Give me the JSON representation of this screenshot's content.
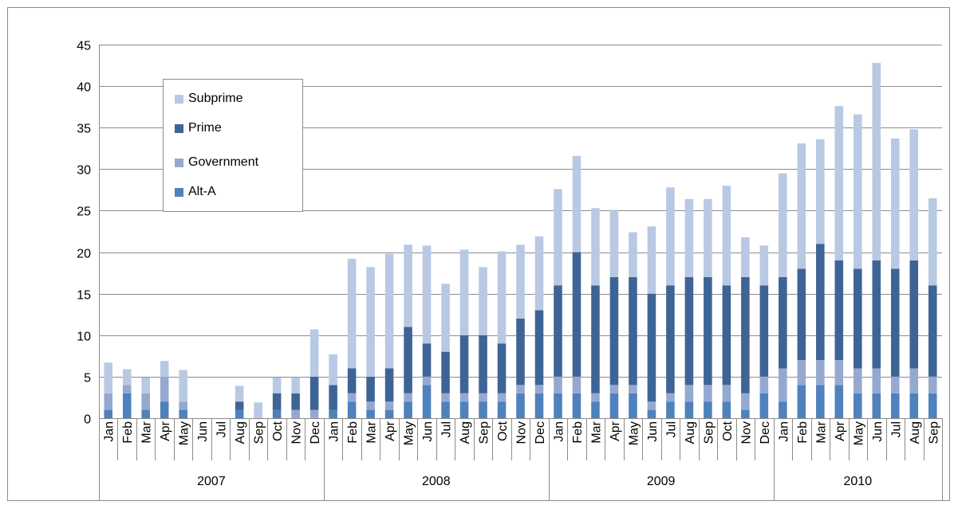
{
  "chart_data": {
    "type": "bar",
    "stacked": true,
    "title": "",
    "xlabel": "",
    "ylabel": "",
    "ylim": [
      0,
      45
    ],
    "yticks": [
      0,
      5,
      10,
      15,
      20,
      25,
      30,
      35,
      40,
      45
    ],
    "grid": true,
    "legend_position": "upper-left",
    "categories": [
      "Jan",
      "Feb",
      "Mar",
      "Apr",
      "May",
      "Jun",
      "Jul",
      "Aug",
      "Sep",
      "Oct",
      "Nov",
      "Dec",
      "Jan",
      "Feb",
      "Mar",
      "Apr",
      "May",
      "Jun",
      "Jul",
      "Aug",
      "Sep",
      "Oct",
      "Nov",
      "Dec",
      "Jan",
      "Feb",
      "Mar",
      "Apr",
      "May",
      "Jun",
      "Jul",
      "Aug",
      "Sep",
      "Oct",
      "Nov",
      "Dec",
      "Jan",
      "Feb",
      "Mar",
      "Apr",
      "May",
      "Jun",
      "Jul",
      "Aug",
      "Sep"
    ],
    "years": [
      {
        "label": "2007",
        "months": 12
      },
      {
        "label": "2008",
        "months": 12
      },
      {
        "label": "2009",
        "months": 12
      },
      {
        "label": "2010",
        "months": 9
      }
    ],
    "series": [
      {
        "name": "Alt-A",
        "color": "#4f81bd",
        "values": [
          1,
          3,
          1,
          2,
          1,
          0,
          0,
          1,
          0,
          1,
          0,
          0,
          1,
          2,
          1,
          1,
          2,
          4,
          2,
          2,
          2,
          2,
          3,
          3,
          3,
          3,
          2,
          3,
          3,
          1,
          2,
          2,
          2,
          2,
          1,
          3,
          2,
          4,
          4,
          4,
          3,
          3,
          3,
          3,
          3
        ]
      },
      {
        "name": "Government",
        "color": "#95a9d0",
        "values": [
          2,
          1,
          2,
          3,
          1,
          0,
          0,
          0,
          0,
          0,
          1,
          1,
          0,
          1,
          1,
          1,
          1,
          1,
          1,
          1,
          1,
          1,
          1,
          1,
          2,
          2,
          1,
          1,
          1,
          1,
          1,
          2,
          2,
          2,
          2,
          2,
          4,
          3,
          3,
          3,
          3,
          3,
          2,
          3,
          2
        ]
      },
      {
        "name": "Prime",
        "color": "#3e6496",
        "values": [
          0,
          0,
          0,
          0,
          0,
          0,
          0,
          1,
          0,
          2,
          2,
          4,
          3,
          3,
          3,
          4,
          8,
          4,
          5,
          7,
          7,
          6,
          8,
          9,
          11,
          15,
          13,
          13,
          13,
          13,
          13,
          13,
          13,
          12,
          14,
          11,
          11,
          11,
          14,
          12,
          12,
          13,
          13,
          13,
          11
        ]
      },
      {
        "name": "Subprime",
        "color": "#b9c9e3",
        "values": [
          3.7,
          1.9,
          1.9,
          1.9,
          3.8,
          0,
          0,
          1.9,
          1.9,
          1.9,
          1.9,
          5.7,
          3.7,
          13.2,
          13.2,
          13.8,
          9.9,
          11.8,
          8.2,
          10.3,
          8.2,
          11.1,
          8.9,
          8.9,
          11.6,
          11.6,
          9.3,
          8.1,
          5.4,
          8.1,
          11.8,
          9.4,
          9.4,
          12.0,
          4.8,
          4.8,
          12.5,
          15.1,
          12.6,
          18.6,
          18.6,
          23.8,
          15.7,
          15.8,
          10.5
        ]
      }
    ]
  }
}
